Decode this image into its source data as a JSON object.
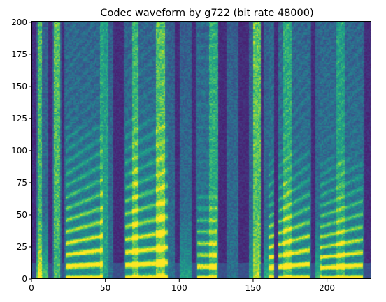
{
  "chart_data": {
    "type": "heatmap",
    "title": "Codec waveform by g722 (bit rate 48000)",
    "xlabel": "",
    "ylabel": "",
    "xlim": [
      0,
      230
    ],
    "ylim": [
      0,
      201
    ],
    "x_ticks": [
      0,
      50,
      100,
      150,
      200
    ],
    "y_ticks": [
      0,
      25,
      50,
      75,
      100,
      125,
      150,
      175,
      200
    ],
    "colormap": "viridis",
    "colorbar": false,
    "grid": false,
    "value_range": [
      0,
      1
    ],
    "time_frames": 230,
    "frequency_bins": 201,
    "silence_frames": [
      [
        0,
        3
      ],
      [
        11,
        14
      ],
      [
        20,
        22
      ],
      [
        55,
        62
      ],
      [
        97,
        100
      ],
      [
        108,
        111
      ],
      [
        126,
        132
      ],
      [
        140,
        147
      ],
      [
        155,
        157
      ],
      [
        164,
        167
      ],
      [
        189,
        192
      ],
      [
        225,
        230
      ]
    ],
    "broadband_onsets": [
      [
        4,
        7,
        0.85
      ],
      [
        15,
        19,
        0.9
      ],
      [
        46,
        52,
        0.55
      ],
      [
        68,
        72,
        0.7
      ],
      [
        84,
        90,
        0.85
      ],
      [
        120,
        126,
        0.6
      ],
      [
        150,
        156,
        0.95
      ],
      [
        170,
        176,
        0.6
      ],
      [
        206,
        212,
        0.5
      ]
    ],
    "voiced_segments": [
      {
        "start": 23,
        "end": 48,
        "f0_start": 9,
        "f0_end": 11,
        "top": 120
      },
      {
        "start": 63,
        "end": 92,
        "f0_start": 10,
        "f0_end": 12,
        "top": 125
      },
      {
        "start": 112,
        "end": 125,
        "f0_start": 9,
        "f0_end": 9,
        "top": 70
      },
      {
        "start": 160,
        "end": 188,
        "f0_start": 8,
        "f0_end": 11,
        "top": 100
      },
      {
        "start": 195,
        "end": 224,
        "f0_start": 8,
        "f0_end": 10,
        "top": 95
      }
    ],
    "low_band_segments": [
      [
        3,
        12,
        0.85
      ],
      [
        58,
        62,
        0.6
      ],
      [
        100,
        108,
        0.5
      ],
      [
        147,
        154,
        0.5
      ],
      [
        156,
        164,
        0.6
      ],
      [
        192,
        196,
        0.7
      ]
    ]
  }
}
